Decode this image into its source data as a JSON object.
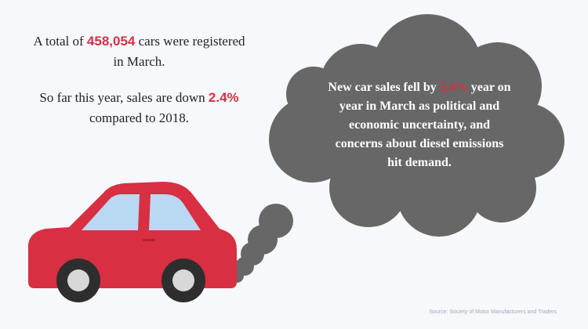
{
  "stats": {
    "line1_pre": "A total of ",
    "line1_value": "458,054",
    "line1_post": " cars were registered in March.",
    "line2_pre": "So far this year, sales are down ",
    "line2_value": "2.4%",
    "line2_post": " compared to 2018."
  },
  "bubble": {
    "text_pre": "New car sales fell by ",
    "text_value": "3.4%",
    "text_post": " year on year in March as political and economic uncertainty, and concerns about diesel emissions hit demand."
  },
  "source": "Source: Society of Motor Manufacturers and Traders",
  "colors": {
    "background": "#f7f8fb",
    "highlight": "#d43044",
    "car_body": "#d82f42",
    "car_window": "#b9d8f2",
    "smoke": "#676767",
    "tire": "#2e2e2e",
    "hub": "#d8d8d8"
  }
}
